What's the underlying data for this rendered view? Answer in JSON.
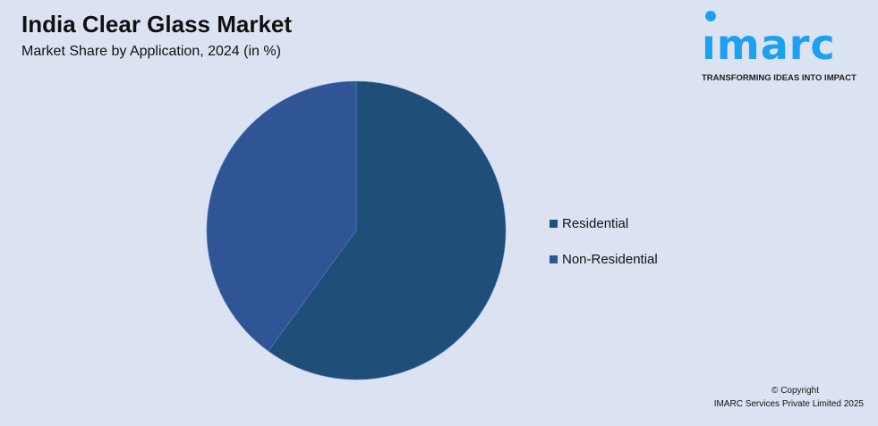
{
  "header": {
    "title": "India Clear Glass Market",
    "subtitle": "Market Share by Application, 2024 (in %)"
  },
  "logo": {
    "text": "imarc",
    "tagline": "TRANSFORMING IDEAS INTO IMPACT",
    "color": "#1ea0f0"
  },
  "chart_data": {
    "type": "pie",
    "title": "India Clear Glass Market",
    "subtitle": "Market Share by Application, 2024 (in %)",
    "categories": [
      "Residential",
      "Non-Residential"
    ],
    "values": [
      60,
      40
    ],
    "colors": [
      "#1f4e79",
      "#2f5597"
    ],
    "start_angle": "12 o'clock, clockwise",
    "legend_position": "right"
  },
  "footer": {
    "copyright": "© Copyright",
    "company": "IMARC Services Private Limited 2025"
  }
}
